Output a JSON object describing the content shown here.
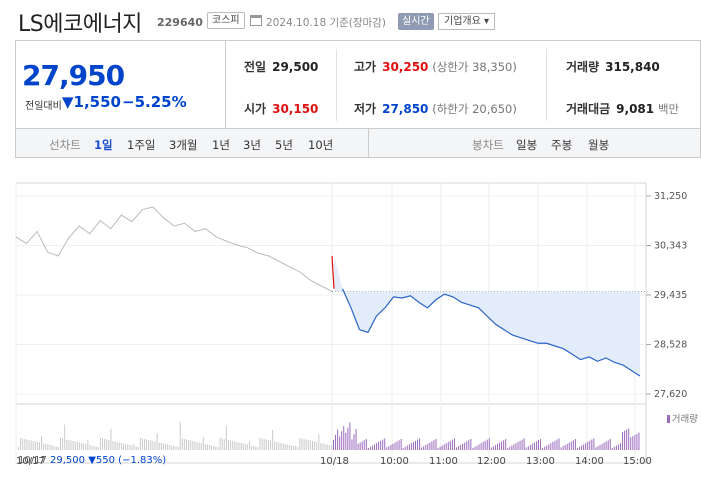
{
  "header": {
    "name": "LS에코에너지",
    "code": "229640",
    "market": "코스피",
    "date": "2024.10.18 기준(장마감)",
    "realtime": "실시간",
    "company_info": "기업개요 ▾"
  },
  "quote": {
    "price": "27,950",
    "change_label": "전일대비",
    "change": "▼1,550",
    "change_pct": "−5.25%",
    "prev_close_label": "전일",
    "prev_close": "29,500",
    "open_label": "시가",
    "open": "30,150",
    "high_label": "고가",
    "high": "30,250",
    "upper_limit": "(상한가 38,350)",
    "low_label": "저가",
    "low": "27,850",
    "lower_limit": "(하한가 20,650)",
    "volume_label": "거래량",
    "volume": "315,840",
    "amount_label": "거래대금",
    "amount": "9,081",
    "amount_unit": "백만"
  },
  "tabs": {
    "line_label": "선차트",
    "line_periods": [
      "1일",
      "1주일",
      "3개월",
      "1년",
      "3년",
      "5년",
      "10년"
    ],
    "line_selected": 0,
    "candle_label": "봉차트",
    "candle_periods": [
      "일봉",
      "주봉",
      "월봉"
    ]
  },
  "chart_data": {
    "type": "line",
    "y_ticks": [
      "31,250",
      "30,343",
      "29,435",
      "28,528",
      "27,620"
    ],
    "ylim": [
      27620,
      31250
    ],
    "prev_close_value": 29500,
    "x_ticks": [
      "10/17",
      "10/18",
      "10:00",
      "11:00",
      "12:00",
      "13:00",
      "14:00",
      "15:00"
    ],
    "volume_label": "거래량",
    "prev_day_series": [
      30500,
      30380,
      30600,
      30220,
      30150,
      30480,
      30700,
      30560,
      30800,
      30650,
      30900,
      30780,
      31000,
      31050,
      30850,
      30700,
      30750,
      30600,
      30650,
      30500,
      30420,
      30350,
      30300,
      30200,
      30150,
      30050,
      29950,
      29850,
      29700,
      29600,
      29500
    ],
    "today_series": [
      30150,
      29550,
      29200,
      28800,
      28750,
      29050,
      29200,
      29400,
      29380,
      29420,
      29300,
      29200,
      29350,
      29450,
      29400,
      29300,
      29250,
      29200,
      29050,
      28900,
      28800,
      28700,
      28650,
      28600,
      28550,
      28550,
      28500,
      28450,
      28350,
      28250,
      28300,
      28220,
      28280,
      28200,
      28150,
      28050,
      27950
    ],
    "footer": {
      "date": "10/17",
      "price": "29,500",
      "change": "▼550",
      "pct": "(−1.83%)"
    }
  },
  "colors": {
    "up": "#e01010",
    "down": "#0044cc",
    "line_today": "#2a64c8",
    "fill_today": "#e3ecfa",
    "line_prev": "#bbbbbb",
    "volume": "#9b6bbd"
  }
}
